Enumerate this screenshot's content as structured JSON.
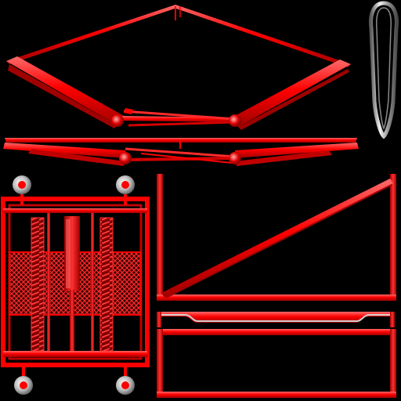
{
  "texture_sheet": {
    "background": "#000000",
    "colors": {
      "red": "#ff0000",
      "red_dark": "#a00000",
      "red_mid": "#d40000",
      "red_light": "#ff5a5a",
      "chrome": "#c8c8c8",
      "chrome_dark": "#5a5a5a",
      "chrome_light": "#f2f2f2"
    },
    "parts": [
      {
        "name": "scissor-arm-upper",
        "icon": "scissor-linkage-icon"
      },
      {
        "name": "scissor-arm-lower",
        "icon": "scissor-linkage-icon"
      },
      {
        "name": "chrome-clip",
        "icon": "link-clip-icon"
      },
      {
        "name": "spring-cage",
        "icon": "coil-spring-icon"
      },
      {
        "name": "triangle-frame",
        "icon": "triangle-frame-icon"
      },
      {
        "name": "bed-rail",
        "icon": "rail-icon"
      }
    ]
  }
}
